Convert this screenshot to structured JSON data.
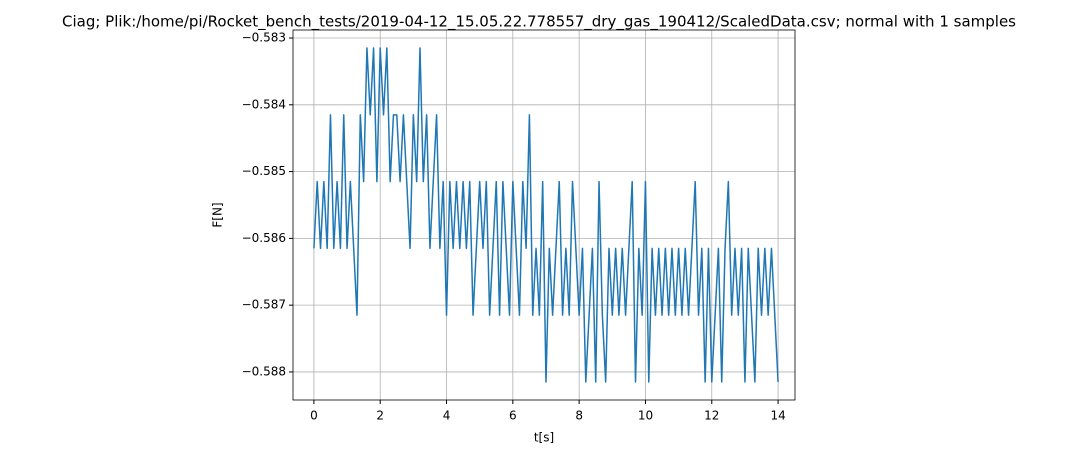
{
  "chart_data": {
    "type": "line",
    "title": "Ciag; Plik:/home/pi/Rocket_bench_tests/2019-04-12_15.05.22.778557_dry_gas_190412/ScaledData.csv; normal with 1 samples",
    "x_label": "t[s]",
    "y_label": "F[N]",
    "grid": true,
    "xlim": [
      -0.63,
      14.51
    ],
    "ylim": [
      -0.58842,
      -0.58288
    ],
    "xticks": [
      0,
      2,
      4,
      6,
      8,
      10,
      12,
      14
    ],
    "yticks": [
      {
        "value": -0.583,
        "label": "−0.583"
      },
      {
        "value": -0.584,
        "label": "−0.584"
      },
      {
        "value": -0.585,
        "label": "−0.585"
      },
      {
        "value": -0.586,
        "label": "−0.586"
      },
      {
        "value": -0.587,
        "label": "−0.587"
      },
      {
        "value": -0.588,
        "label": "−0.588"
      }
    ],
    "x": [
      0,
      0.1,
      0.2,
      0.3,
      0.4,
      0.5,
      0.6,
      0.7,
      0.8,
      0.9,
      1.0,
      1.1,
      1.2,
      1.3,
      1.4,
      1.5,
      1.6,
      1.7,
      1.8,
      1.9,
      2.0,
      2.1,
      2.2,
      2.3,
      2.4,
      2.5,
      2.6,
      2.7,
      2.8,
      2.9,
      3.0,
      3.1,
      3.2,
      3.3,
      3.4,
      3.5,
      3.6,
      3.7,
      3.8,
      3.9,
      4.0,
      4.1,
      4.2,
      4.3,
      4.4,
      4.5,
      4.6,
      4.7,
      4.8,
      4.9,
      5.0,
      5.1,
      5.2,
      5.3,
      5.4,
      5.5,
      5.6,
      5.7,
      5.8,
      5.9,
      6.0,
      6.1,
      6.2,
      6.3,
      6.4,
      6.5,
      6.6,
      6.7,
      6.8,
      6.9,
      7.0,
      7.1,
      7.2,
      7.3,
      7.4,
      7.5,
      7.6,
      7.7,
      7.8,
      7.9,
      8.0,
      8.1,
      8.2,
      8.3,
      8.4,
      8.5,
      8.6,
      8.7,
      8.8,
      8.9,
      9.0,
      9.1,
      9.2,
      9.3,
      9.4,
      9.5,
      9.6,
      9.7,
      9.8,
      9.9,
      10.0,
      10.1,
      10.2,
      10.3,
      10.4,
      10.5,
      10.6,
      10.7,
      10.8,
      10.9,
      11.0,
      11.1,
      11.2,
      11.3,
      11.4,
      11.5,
      11.6,
      11.7,
      11.8,
      11.9,
      12.0,
      12.1,
      12.2,
      12.3,
      12.4,
      12.5,
      12.6,
      12.7,
      12.8,
      12.9,
      13.0,
      13.1,
      13.2,
      13.3,
      13.4,
      13.5,
      13.6,
      13.7,
      13.8,
      13.9,
      14.0
    ],
    "series": [
      {
        "color": "#1f77b4",
        "values": [
          -0.58615,
          -0.58515,
          -0.58615,
          -0.58515,
          -0.58615,
          -0.58415,
          -0.58615,
          -0.58515,
          -0.58615,
          -0.58415,
          -0.58615,
          -0.58515,
          -0.58615,
          -0.58715,
          -0.58415,
          -0.58515,
          -0.58315,
          -0.58415,
          -0.58315,
          -0.58515,
          -0.58315,
          -0.58415,
          -0.58315,
          -0.58515,
          -0.58415,
          -0.58415,
          -0.58515,
          -0.58415,
          -0.58515,
          -0.58615,
          -0.58415,
          -0.58515,
          -0.58315,
          -0.58515,
          -0.58415,
          -0.58615,
          -0.58515,
          -0.58415,
          -0.58615,
          -0.58515,
          -0.58715,
          -0.58515,
          -0.58615,
          -0.58515,
          -0.58615,
          -0.58515,
          -0.58615,
          -0.58515,
          -0.58715,
          -0.58615,
          -0.58515,
          -0.58615,
          -0.58515,
          -0.58715,
          -0.58615,
          -0.58515,
          -0.58715,
          -0.58515,
          -0.58615,
          -0.58715,
          -0.58515,
          -0.58615,
          -0.58715,
          -0.58515,
          -0.58615,
          -0.58415,
          -0.58715,
          -0.58615,
          -0.58715,
          -0.58515,
          -0.58815,
          -0.58615,
          -0.58715,
          -0.58615,
          -0.58515,
          -0.58715,
          -0.58615,
          -0.58715,
          -0.58515,
          -0.58615,
          -0.58715,
          -0.58615,
          -0.58815,
          -0.58715,
          -0.58615,
          -0.58815,
          -0.58515,
          -0.58715,
          -0.58815,
          -0.58615,
          -0.58715,
          -0.58615,
          -0.58715,
          -0.58615,
          -0.58715,
          -0.58615,
          -0.58515,
          -0.58815,
          -0.58615,
          -0.58715,
          -0.58515,
          -0.58815,
          -0.58615,
          -0.58715,
          -0.58615,
          -0.58715,
          -0.58615,
          -0.58715,
          -0.58615,
          -0.58715,
          -0.58615,
          -0.58715,
          -0.58615,
          -0.58715,
          -0.58615,
          -0.58515,
          -0.58715,
          -0.58615,
          -0.58815,
          -0.58615,
          -0.58815,
          -0.58715,
          -0.58615,
          -0.58815,
          -0.58615,
          -0.58515,
          -0.58715,
          -0.58615,
          -0.58715,
          -0.58615,
          -0.58815,
          -0.58615,
          -0.58715,
          -0.58815,
          -0.58615,
          -0.58715,
          -0.58615,
          -0.58715,
          -0.58615,
          -0.58715,
          -0.58815
        ]
      }
    ]
  }
}
